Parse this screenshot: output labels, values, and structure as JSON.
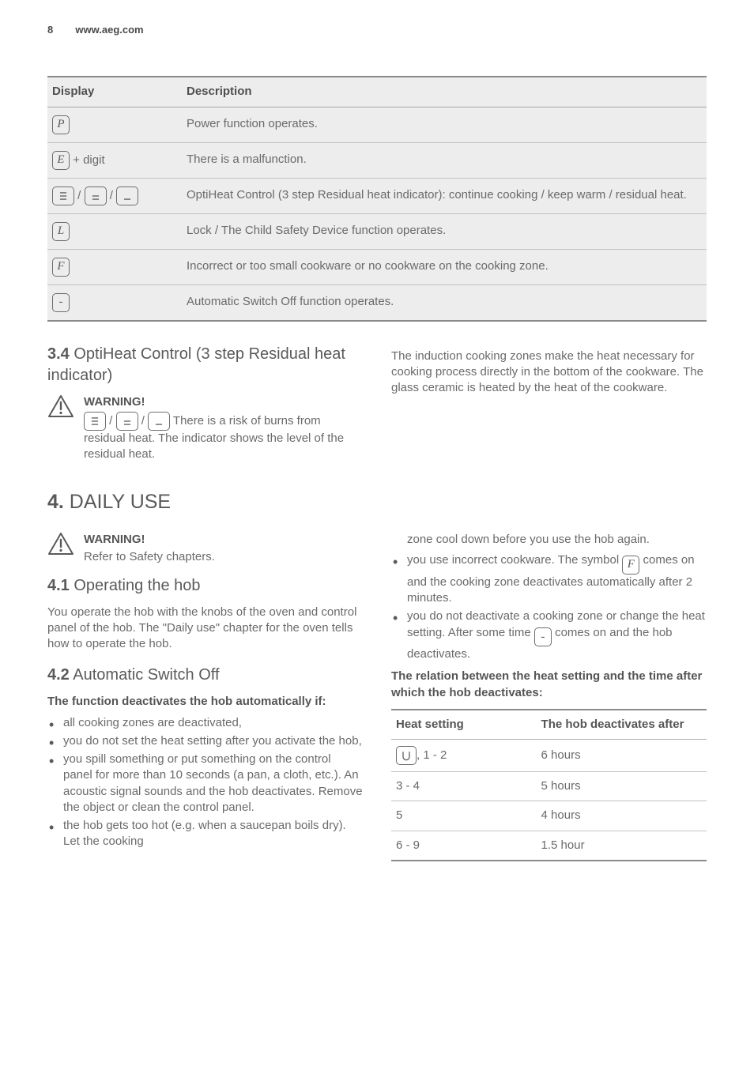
{
  "header": {
    "page_number": "8",
    "site": "www.aeg.com"
  },
  "display_table": {
    "columns": [
      "Display",
      "Description"
    ],
    "rows": [
      {
        "symbol_letter": "P",
        "symbol_kind": "letter",
        "suffix": "",
        "desc": "Power function operates."
      },
      {
        "symbol_letter": "E",
        "symbol_kind": "letter",
        "suffix": " + digit",
        "desc": "There is a malfunction."
      },
      {
        "symbol_kind": "opti3",
        "suffix": "",
        "desc": "OptiHeat Control (3 step Residual heat indicator): continue cooking / keep warm / residual heat."
      },
      {
        "symbol_letter": "L",
        "symbol_kind": "letter",
        "suffix": "",
        "desc": "Lock / The Child Safety Device function operates."
      },
      {
        "symbol_letter": "F",
        "symbol_kind": "letter",
        "suffix": "",
        "desc": "Incorrect or too small cookware or no cookware on the cooking zone."
      },
      {
        "symbol_letter": "-",
        "symbol_kind": "dash",
        "suffix": "",
        "desc": "Automatic Switch Off function operates."
      }
    ]
  },
  "sec34": {
    "num": "3.4",
    "title": " OptiHeat Control (3 step Residual heat indicator)",
    "warn_title": "WARNING!",
    "warn_text_after_icons": " There is a risk of burns from residual heat. The indicator shows the level of the residual heat.",
    "right_p": "The induction cooking zones make the heat necessary for cooking process directly in the bottom of the cookware. The glass ceramic is heated by the heat of the cookware."
  },
  "sec4": {
    "num": "4.",
    "title": " DAILY USE",
    "warn_title": "WARNING!",
    "warn_text": "Refer to Safety chapters."
  },
  "sec41": {
    "num": "4.1",
    "title": " Operating the hob",
    "body": "You operate the hob with the knobs of the oven and control panel of the hob. The \"Daily use\" chapter for the oven tells how to operate the hob."
  },
  "sec42": {
    "num": "4.2",
    "title": " Automatic Switch Off",
    "lead": "The function deactivates the hob automatically if:",
    "bullets_left": [
      "all cooking zones are deactivated,",
      "you do not set the heat setting after you activate the hob,",
      "you spill something or put something on the control panel for more than 10 seconds (a pan, a cloth, etc.). An acoustic signal sounds and the hob deactivates. Remove the object or clean the control panel.",
      "the hob gets too hot (e.g. when a saucepan boils dry). Let the cooking"
    ],
    "right_top_continuation": "zone cool down before you use the hob again.",
    "bullet_r1_a": "you use incorrect cookware. The symbol ",
    "bullet_r1_b": " comes on and the cooking zone deactivates automatically after 2 minutes.",
    "bullet_r2_a": "you do not deactivate a cooking zone or change the heat setting. After some time ",
    "bullet_r2_b": " comes on and the hob deactivates.",
    "relation_hd": "The relation between the heat setting and the time after which the hob deactivates:"
  },
  "heat_table": {
    "columns": [
      "Heat setting",
      "The hob deacti­vates after"
    ],
    "rows": [
      {
        "hs_prefix_icon": true,
        "hs": ", 1 - 2",
        "after": "6 hours"
      },
      {
        "hs_prefix_icon": false,
        "hs": "3 - 4",
        "after": "5 hours"
      },
      {
        "hs_prefix_icon": false,
        "hs": "5",
        "after": "4 hours"
      },
      {
        "hs_prefix_icon": false,
        "hs": "6 - 9",
        "after": "1.5 hour"
      }
    ]
  },
  "colors": {
    "text": "#5a5a5a",
    "muted": "#6a6a6a",
    "rule": "#8a8a8a",
    "row_bg": "#ededed"
  }
}
